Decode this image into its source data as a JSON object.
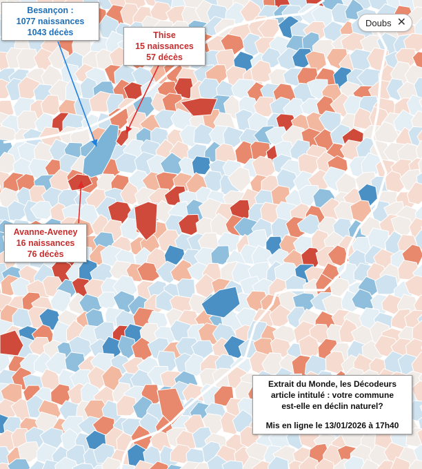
{
  "palette": {
    "blue_dark": "#4a90c4",
    "blue": "#8fbfdc",
    "blue_light": "#cfe2ef",
    "blue_pale": "#e4eef5",
    "neutral": "#f1ece8",
    "red_pale": "#f6dcd0",
    "red_light": "#f2b8a0",
    "red": "#e8886c",
    "red_dark": "#cf4a3a",
    "boundary": "#ffffff",
    "arrow_blue": "#1e7fe0",
    "arrow_red": "#e02a2a"
  },
  "filter_chip": {
    "label": "Doubs",
    "close_icon": "close-icon"
  },
  "callouts": [
    {
      "id": "besancon",
      "line1": "Besançon :",
      "line2": "1077 naissances",
      "line3": "1043 décès",
      "color": "blue"
    },
    {
      "id": "thise",
      "line1": "Thise",
      "line2": "15 naissances",
      "line3": "57 décès",
      "color": "red"
    },
    {
      "id": "avanne",
      "line1": "Avanne-Aveney",
      "line2": "16 naissances",
      "line3": "76 décès",
      "color": "red"
    }
  ],
  "source_note": {
    "line1": "Extrait du Monde, les Décodeurs",
    "line2": "article intitulé : votre commune",
    "line3": "est-elle en déclin naturel?",
    "line4": "Mis en ligne le 13/01/2026 à 17h40"
  }
}
